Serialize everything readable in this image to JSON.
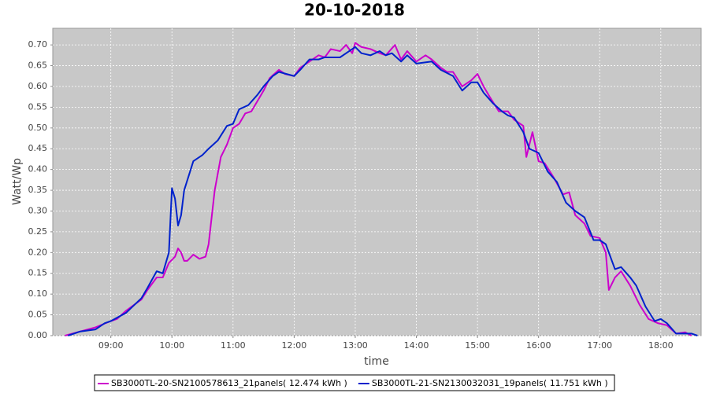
{
  "chart_data": {
    "type": "line",
    "title": "20-10-2018",
    "x_label": "time",
    "y_label": "Watt/Wp",
    "xlim": [
      8.05,
      18.66
    ],
    "ylim": [
      0,
      0.74
    ],
    "grid": true,
    "legend": "bottom",
    "xticks": [
      {
        "value": 9,
        "label": "09:00"
      },
      {
        "value": 10,
        "label": "10:00"
      },
      {
        "value": 11,
        "label": "11:00"
      },
      {
        "value": 12,
        "label": "12:00"
      },
      {
        "value": 13,
        "label": "13:00"
      },
      {
        "value": 14,
        "label": "14:00"
      },
      {
        "value": 15,
        "label": "15:00"
      },
      {
        "value": 16,
        "label": "16:00"
      },
      {
        "value": 17,
        "label": "17:00"
      },
      {
        "value": 18,
        "label": "18:00"
      }
    ],
    "yticks": [
      {
        "value": 0,
        "label": "0.00"
      },
      {
        "value": 0.05,
        "label": "0.05"
      },
      {
        "value": 0.1,
        "label": "0.10"
      },
      {
        "value": 0.15,
        "label": "0.15"
      },
      {
        "value": 0.2,
        "label": "0.20"
      },
      {
        "value": 0.25,
        "label": "0.25"
      },
      {
        "value": 0.3,
        "label": "0.30"
      },
      {
        "value": 0.35,
        "label": "0.35"
      },
      {
        "value": 0.4,
        "label": "0.40"
      },
      {
        "value": 0.45,
        "label": "0.45"
      },
      {
        "value": 0.5,
        "label": "0.50"
      },
      {
        "value": 0.55,
        "label": "0.55"
      },
      {
        "value": 0.6,
        "label": "0.60"
      },
      {
        "value": 0.65,
        "label": "0.65"
      },
      {
        "value": 0.7,
        "label": "0.70"
      }
    ],
    "series": [
      {
        "name": "SB3000TL-20-SN2100578613_21panels( 12.474 kWh )",
        "color": "#cc00cc",
        "x": [
          8.25,
          8.5,
          8.75,
          9.0,
          9.1,
          9.25,
          9.5,
          9.6,
          9.75,
          9.85,
          9.95,
          10.05,
          10.1,
          10.15,
          10.2,
          10.25,
          10.35,
          10.45,
          10.55,
          10.6,
          10.7,
          10.8,
          10.9,
          11.0,
          11.1,
          11.2,
          11.3,
          11.4,
          11.5,
          11.6,
          11.75,
          11.85,
          12.0,
          12.1,
          12.25,
          12.4,
          12.5,
          12.6,
          12.75,
          12.85,
          12.95,
          13.0,
          13.1,
          13.25,
          13.4,
          13.5,
          13.65,
          13.75,
          13.85,
          14.0,
          14.15,
          14.25,
          14.4,
          14.5,
          14.6,
          14.75,
          14.9,
          15.0,
          15.1,
          15.2,
          15.35,
          15.5,
          15.6,
          15.75,
          15.8,
          15.9,
          16.0,
          16.1,
          16.25,
          16.4,
          16.5,
          16.6,
          16.75,
          16.85,
          17.0,
          17.1,
          17.15,
          17.25,
          17.35,
          17.5,
          17.65,
          17.8,
          17.95,
          18.1,
          18.25,
          18.4,
          18.5
        ],
        "values": [
          0.0,
          0.01,
          0.02,
          0.035,
          0.04,
          0.06,
          0.087,
          0.11,
          0.14,
          0.14,
          0.175,
          0.19,
          0.21,
          0.2,
          0.18,
          0.18,
          0.195,
          0.185,
          0.19,
          0.22,
          0.35,
          0.43,
          0.46,
          0.5,
          0.51,
          0.535,
          0.54,
          0.565,
          0.59,
          0.62,
          0.64,
          0.63,
          0.625,
          0.645,
          0.66,
          0.675,
          0.67,
          0.69,
          0.685,
          0.7,
          0.68,
          0.705,
          0.695,
          0.69,
          0.68,
          0.675,
          0.7,
          0.665,
          0.685,
          0.66,
          0.675,
          0.665,
          0.645,
          0.635,
          0.635,
          0.6,
          0.615,
          0.63,
          0.6,
          0.575,
          0.54,
          0.54,
          0.52,
          0.505,
          0.43,
          0.49,
          0.42,
          0.415,
          0.38,
          0.34,
          0.345,
          0.29,
          0.27,
          0.24,
          0.235,
          0.2,
          0.11,
          0.14,
          0.155,
          0.12,
          0.075,
          0.04,
          0.03,
          0.025,
          0.005,
          0.008,
          0.0
        ]
      },
      {
        "name": "SB3000TL-21-SN2130032031_19panels( 11.751 kWh )",
        "color": "#0022cc",
        "x": [
          8.3,
          8.5,
          8.75,
          8.9,
          9.0,
          9.25,
          9.5,
          9.6,
          9.75,
          9.85,
          9.95,
          10.0,
          10.05,
          10.1,
          10.15,
          10.2,
          10.35,
          10.5,
          10.6,
          10.75,
          10.9,
          11.0,
          11.1,
          11.25,
          11.4,
          11.5,
          11.65,
          11.75,
          12.0,
          12.1,
          12.25,
          12.4,
          12.5,
          12.6,
          12.75,
          13.0,
          13.1,
          13.25,
          13.4,
          13.5,
          13.6,
          13.75,
          13.85,
          14.0,
          14.25,
          14.4,
          14.6,
          14.75,
          14.9,
          15.0,
          15.1,
          15.25,
          15.4,
          15.5,
          15.6,
          15.75,
          15.85,
          16.0,
          16.15,
          16.3,
          16.45,
          16.6,
          16.75,
          16.9,
          17.0,
          17.1,
          17.25,
          17.35,
          17.5,
          17.6,
          17.75,
          17.9,
          18.0,
          18.1,
          18.25,
          18.5,
          18.6
        ],
        "values": [
          0.0,
          0.01,
          0.015,
          0.03,
          0.035,
          0.055,
          0.09,
          0.115,
          0.155,
          0.15,
          0.2,
          0.355,
          0.33,
          0.265,
          0.29,
          0.35,
          0.42,
          0.435,
          0.45,
          0.47,
          0.505,
          0.51,
          0.545,
          0.555,
          0.58,
          0.6,
          0.625,
          0.635,
          0.625,
          0.64,
          0.665,
          0.665,
          0.67,
          0.67,
          0.67,
          0.695,
          0.68,
          0.675,
          0.685,
          0.675,
          0.68,
          0.66,
          0.675,
          0.655,
          0.66,
          0.64,
          0.625,
          0.59,
          0.61,
          0.61,
          0.585,
          0.56,
          0.54,
          0.53,
          0.525,
          0.49,
          0.45,
          0.44,
          0.395,
          0.37,
          0.32,
          0.3,
          0.285,
          0.23,
          0.23,
          0.22,
          0.16,
          0.165,
          0.14,
          0.12,
          0.07,
          0.035,
          0.04,
          0.03,
          0.005,
          0.005,
          0.0
        ]
      }
    ]
  }
}
